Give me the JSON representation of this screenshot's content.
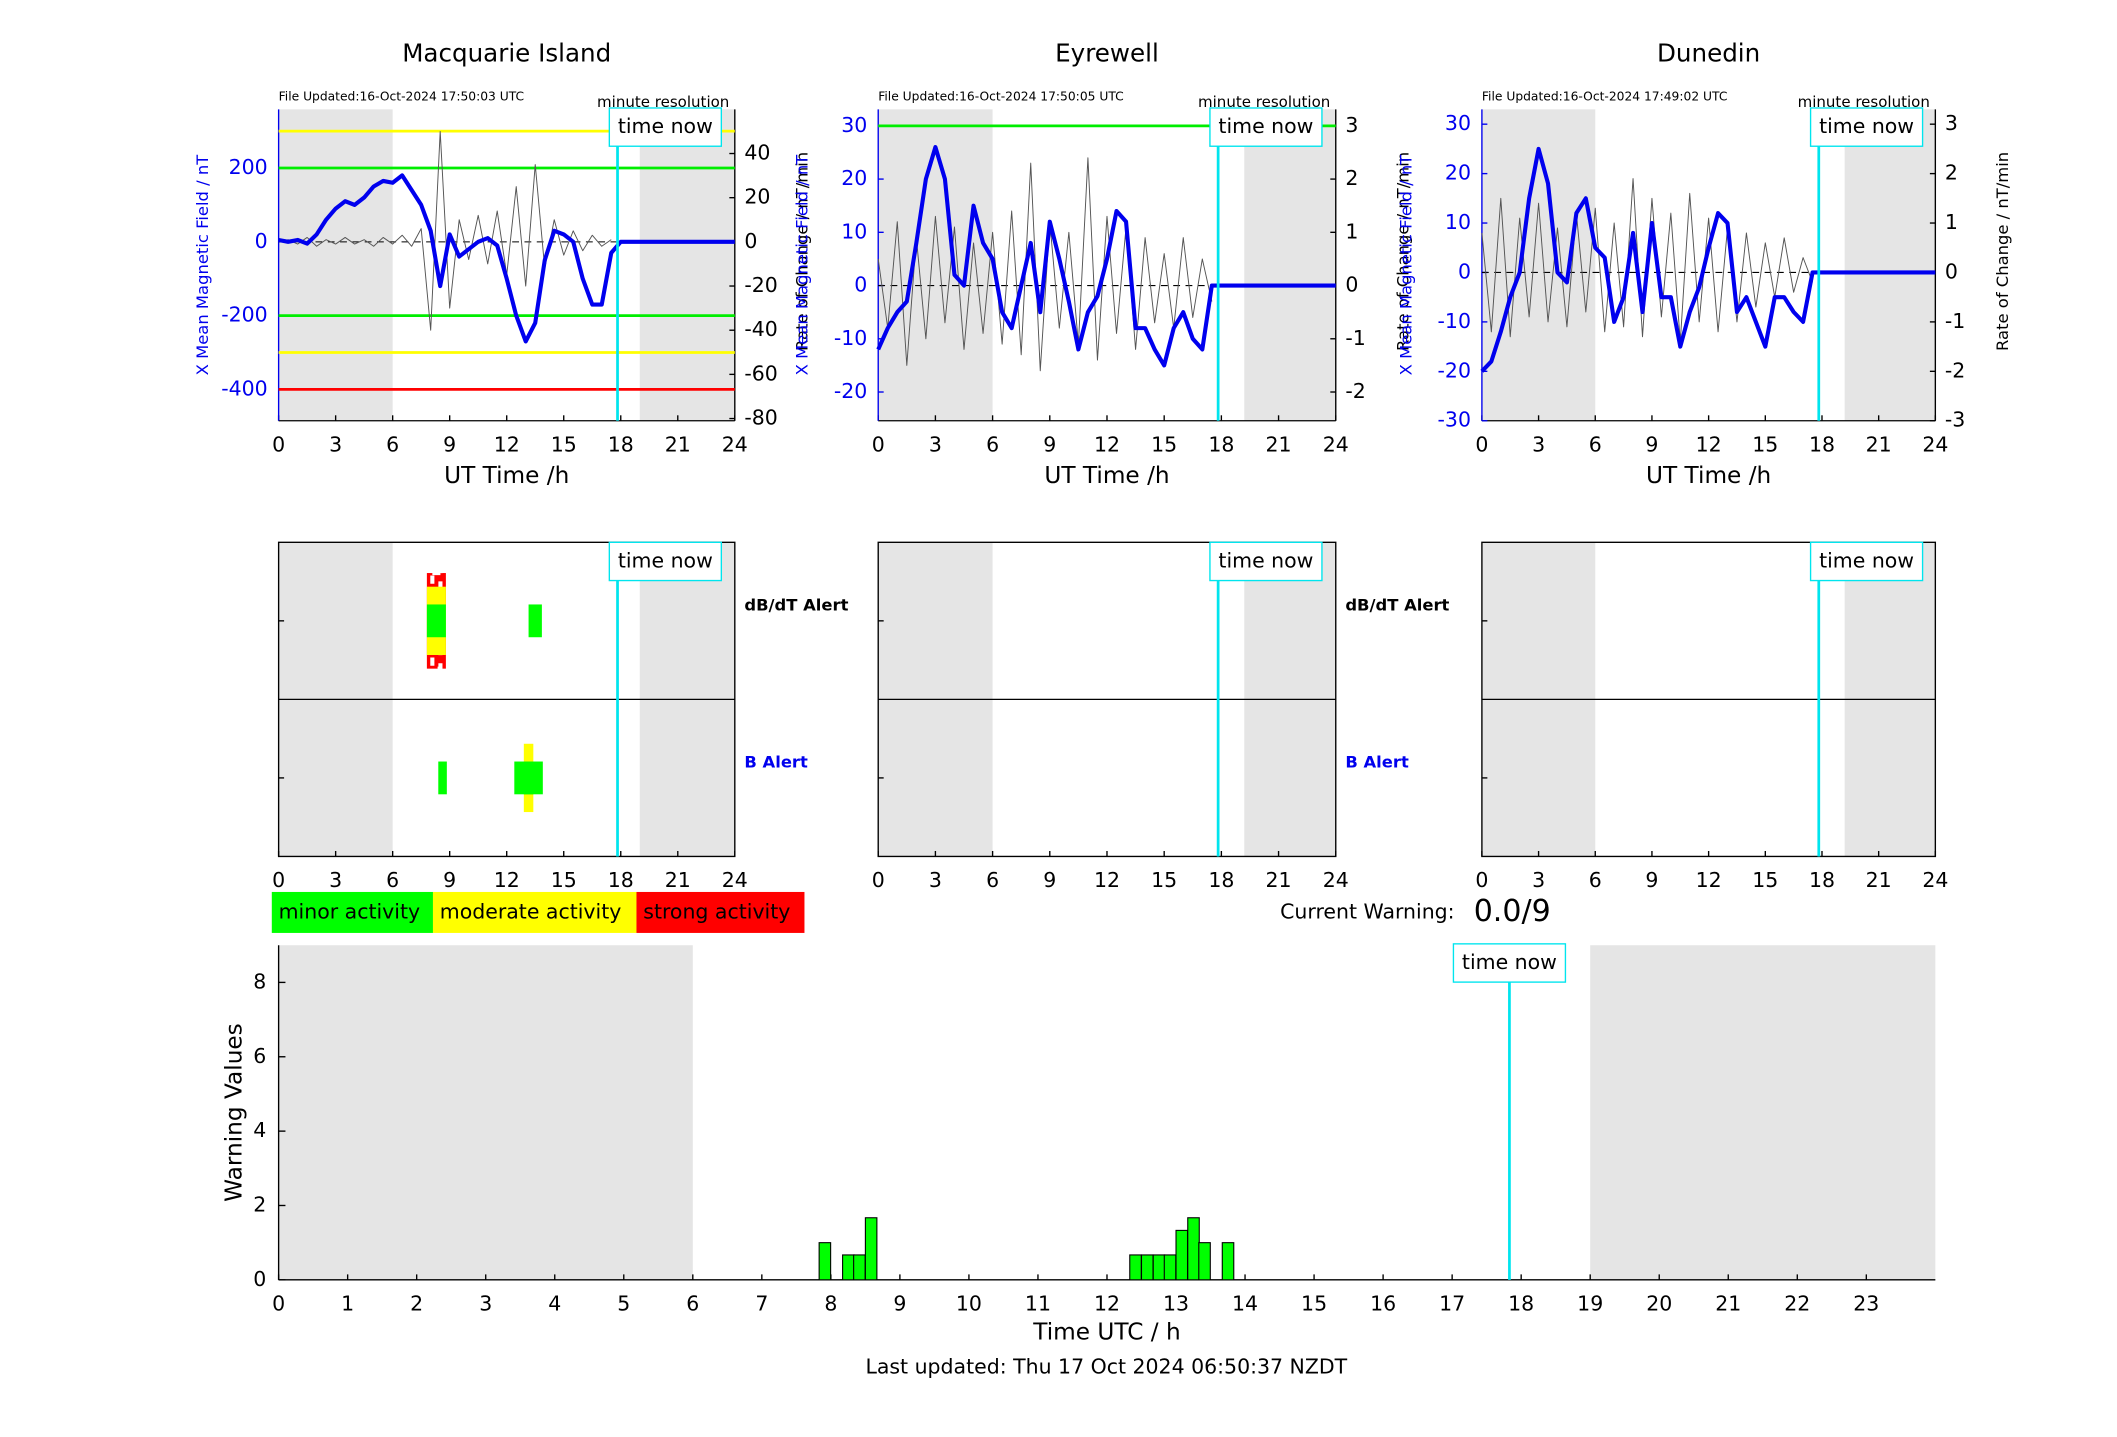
{
  "chart_data": [
    {
      "type": "line",
      "title": "Macquarie Island",
      "file_updated": "File Updated:16-Oct-2024 17:50:03 UTC",
      "resolution": "minute resolution",
      "xlabel": "UT Time /h",
      "ylabel": "X Mean Magnetic Field / nT",
      "y2label": "Rate of Change / nT/min",
      "xlim": [
        0,
        24
      ],
      "xticks": [
        0,
        3,
        6,
        9,
        12,
        15,
        18,
        21,
        24
      ],
      "ylim": [
        -485,
        359
      ],
      "yticks": [
        -400,
        -200,
        0,
        200
      ],
      "y2lim": [
        -81,
        60
      ],
      "y2ticks": [
        -80,
        -60,
        -40,
        -20,
        0,
        20,
        40
      ],
      "shade": [
        [
          0,
          6
        ],
        [
          19,
          24
        ]
      ],
      "time_now": 17.83,
      "time_now_label": "time now",
      "thresholds": [
        {
          "value": 300,
          "color": "#ffff00"
        },
        {
          "value": 200,
          "color": "#00ee00"
        },
        {
          "value": -200,
          "color": "#00ee00"
        },
        {
          "value": -300,
          "color": "#ffff00"
        },
        {
          "value": -400,
          "color": "#ff0000"
        }
      ],
      "x": [
        0,
        0.5,
        1,
        1.5,
        2,
        2.5,
        3,
        3.5,
        4,
        4.5,
        5,
        5.5,
        6,
        6.5,
        7,
        7.5,
        8,
        8.5,
        9,
        9.5,
        10,
        10.5,
        11,
        11.5,
        12,
        12.5,
        13,
        13.5,
        14,
        14.5,
        15,
        15.5,
        16,
        16.5,
        17,
        17.5,
        18,
        18.5,
        19,
        19.5,
        20,
        20.5,
        21,
        21.5,
        22,
        22.5,
        23,
        23.5,
        24
      ],
      "series": [
        {
          "color": "#555555",
          "axis": "y2",
          "values": [
            0,
            1,
            -1,
            2,
            -2,
            1,
            -1,
            2,
            -1,
            1,
            -2,
            2,
            -1,
            3,
            -2,
            6,
            -40,
            50,
            -30,
            10,
            -8,
            12,
            -10,
            14,
            -15,
            25,
            -20,
            35,
            -12,
            10,
            -6,
            5,
            -4,
            3,
            -2,
            1,
            null,
            null,
            null,
            null,
            null,
            null,
            null,
            null,
            null,
            null,
            null,
            null,
            null
          ]
        },
        {
          "color": "#0000ee",
          "values": [
            5,
            0,
            5,
            -5,
            20,
            60,
            90,
            110,
            100,
            120,
            150,
            165,
            160,
            180,
            140,
            100,
            30,
            -120,
            20,
            -40,
            -20,
            0,
            10,
            -10,
            -100,
            -200,
            -270,
            -220,
            -50,
            30,
            20,
            0,
            -100,
            -170,
            -170,
            -30,
            0,
            0,
            0,
            0,
            0,
            0,
            0,
            0,
            0,
            0,
            0,
            0,
            0
          ]
        }
      ]
    },
    {
      "type": "line",
      "title": "Eyrewell",
      "file_updated": "File Updated:16-Oct-2024 17:50:05 UTC",
      "resolution": "minute resolution",
      "xlabel": "UT Time /h",
      "ylabel": "X Mean Magnetic Field / nT",
      "y2label": "Rate of Change / nT/min",
      "xlim": [
        0,
        24
      ],
      "xticks": [
        0,
        3,
        6,
        9,
        12,
        15,
        18,
        21,
        24
      ],
      "ylim": [
        -25.4,
        33.1
      ],
      "yticks": [
        -20,
        -10,
        0,
        10,
        20,
        30
      ],
      "y2lim": [
        -2.54,
        3.31
      ],
      "y2ticks": [
        -2,
        -1,
        0,
        1,
        2,
        3
      ],
      "shade": [
        [
          0,
          6
        ],
        [
          19.2,
          24
        ]
      ],
      "time_now": 17.83,
      "time_now_label": "time now",
      "thresholds": [
        {
          "value": 30,
          "color": "#00ee00"
        }
      ],
      "x": [
        0,
        0.5,
        1,
        1.5,
        2,
        2.5,
        3,
        3.5,
        4,
        4.5,
        5,
        5.5,
        6,
        6.5,
        7,
        7.5,
        8,
        8.5,
        9,
        9.5,
        10,
        10.5,
        11,
        11.5,
        12,
        12.5,
        13,
        13.5,
        14,
        14.5,
        15,
        15.5,
        16,
        16.5,
        17,
        17.5,
        18,
        18.5,
        19,
        19.5,
        20,
        20.5,
        21,
        21.5,
        22,
        22.5,
        23,
        23.5,
        24
      ],
      "series": [
        {
          "color": "#555555",
          "axis": "y2",
          "values": [
            0.5,
            -0.8,
            1.2,
            -1.5,
            0.9,
            -1.0,
            1.3,
            -0.7,
            1.1,
            -1.2,
            0.8,
            -0.9,
            1.0,
            -1.1,
            1.4,
            -1.3,
            2.3,
            -1.6,
            1.2,
            -0.8,
            1.0,
            -1.1,
            2.4,
            -1.4,
            1.3,
            -0.9,
            1.1,
            -1.2,
            0.9,
            -0.7,
            0.6,
            -0.8,
            0.9,
            -0.6,
            0.5,
            -0.3,
            null,
            null,
            null,
            null,
            null,
            null,
            null,
            null,
            null,
            null,
            null,
            null,
            null
          ]
        },
        {
          "color": "#0000ee",
          "values": [
            -12,
            -8,
            -5,
            -3,
            8,
            20,
            26,
            20,
            2,
            0,
            15,
            8,
            5,
            -5,
            -8,
            0,
            8,
            -5,
            12,
            5,
            -3,
            -12,
            -5,
            -2,
            5,
            14,
            12,
            -8,
            -8,
            -12,
            -15,
            -8,
            -5,
            -10,
            -12,
            0,
            0,
            0,
            0,
            0,
            0,
            0,
            0,
            0,
            0,
            0,
            0,
            0,
            0
          ]
        }
      ]
    },
    {
      "type": "line",
      "title": "Dunedin",
      "file_updated": "File Updated:16-Oct-2024 17:49:02 UTC",
      "resolution": "minute resolution",
      "xlabel": "UT Time /h",
      "ylabel": "X Mean Magnetic Field / nT",
      "y2label": "Rate of Change / nT/min",
      "xlim": [
        0,
        24
      ],
      "xticks": [
        0,
        3,
        6,
        9,
        12,
        15,
        18,
        21,
        24
      ],
      "ylim": [
        -30,
        33
      ],
      "yticks": [
        -30,
        -20,
        -10,
        0,
        10,
        20,
        30
      ],
      "y2lim": [
        -3,
        3.3
      ],
      "y2ticks": [
        -3,
        -2,
        -1,
        0,
        1,
        2,
        3
      ],
      "shade": [
        [
          0,
          6
        ],
        [
          19.2,
          24
        ]
      ],
      "time_now": 17.83,
      "time_now_label": "time now",
      "thresholds": [],
      "x": [
        0,
        0.5,
        1,
        1.5,
        2,
        2.5,
        3,
        3.5,
        4,
        4.5,
        5,
        5.5,
        6,
        6.5,
        7,
        7.5,
        8,
        8.5,
        9,
        9.5,
        10,
        10.5,
        11,
        11.5,
        12,
        12.5,
        13,
        13.5,
        14,
        14.5,
        15,
        15.5,
        16,
        16.5,
        17,
        17.5,
        18,
        18.5,
        19,
        19.5,
        20,
        20.5,
        21,
        21.5,
        22,
        22.5,
        23,
        23.5,
        24
      ],
      "series": [
        {
          "color": "#555555",
          "axis": "y2",
          "values": [
            0.8,
            -1.2,
            1.5,
            -1.3,
            1.1,
            -0.9,
            1.4,
            -1.0,
            0.9,
            -1.1,
            1.2,
            -0.8,
            1.3,
            -1.2,
            1.0,
            -1.1,
            1.9,
            -1.3,
            1.5,
            -0.9,
            1.2,
            -1.4,
            1.6,
            -1.0,
            1.1,
            -1.2,
            0.9,
            -1.0,
            0.8,
            -0.7,
            0.6,
            -0.5,
            0.7,
            -0.4,
            0.3,
            -0.2,
            null,
            null,
            null,
            null,
            null,
            null,
            null,
            null,
            null,
            null,
            null,
            null,
            null
          ]
        },
        {
          "color": "#0000ee",
          "values": [
            -20,
            -18,
            -12,
            -5,
            0,
            15,
            25,
            18,
            0,
            -2,
            12,
            15,
            5,
            3,
            -10,
            -5,
            8,
            -8,
            10,
            -5,
            -5,
            -15,
            -8,
            -3,
            5,
            12,
            10,
            -8,
            -5,
            -10,
            -15,
            -5,
            -5,
            -8,
            -10,
            0,
            0,
            0,
            0,
            0,
            0,
            0,
            0,
            0,
            0,
            0,
            0,
            0,
            0
          ]
        }
      ]
    },
    {
      "type": "alert",
      "xlim": [
        0,
        24
      ],
      "xticks": [
        0,
        3,
        6,
        9,
        12,
        15,
        18,
        21,
        24
      ],
      "shade": [
        [
          0,
          6
        ],
        [
          19,
          24
        ]
      ],
      "time_now": 17.83,
      "time_now_label": "time now",
      "categories": [
        "dB/dT Alert",
        "B Alert"
      ],
      "category_colors": [
        "#000000",
        "#0000ee"
      ],
      "alerts": [
        {
          "row": 0,
          "start": 7.8,
          "end": 8.8,
          "level": 3
        },
        {
          "row": 0,
          "start": 13.15,
          "end": 13.85,
          "level": 1
        },
        {
          "row": 1,
          "start": 8.4,
          "end": 8.85,
          "level": 1
        },
        {
          "row": 1,
          "start": 12.9,
          "end": 13.4,
          "level": 2
        },
        {
          "row": 1,
          "start": 12.4,
          "end": 13.9,
          "level": 1
        }
      ]
    },
    {
      "type": "alert",
      "xlim": [
        0,
        24
      ],
      "xticks": [
        0,
        3,
        6,
        9,
        12,
        15,
        18,
        21,
        24
      ],
      "shade": [
        [
          0,
          6
        ],
        [
          19.2,
          24
        ]
      ],
      "time_now": 17.83,
      "time_now_label": "time now",
      "categories": [
        "dB/dT Alert",
        "B Alert"
      ],
      "category_colors": [
        "#000000",
        "#0000ee"
      ],
      "alerts": []
    },
    {
      "type": "alert",
      "xlim": [
        0,
        24
      ],
      "xticks": [
        0,
        3,
        6,
        9,
        12,
        15,
        18,
        21,
        24
      ],
      "shade": [
        [
          0,
          6
        ],
        [
          19.2,
          24
        ]
      ],
      "time_now": 17.83,
      "time_now_label": "time now",
      "alerts": []
    },
    {
      "type": "bar",
      "xlabel": "Time UTC / h",
      "ylabel": "Warning Values",
      "xlim": [
        0,
        24
      ],
      "xticks": [
        0,
        1,
        2,
        3,
        4,
        5,
        6,
        7,
        8,
        9,
        10,
        11,
        12,
        13,
        14,
        15,
        16,
        17,
        18,
        19,
        20,
        21,
        22,
        23
      ],
      "ylim": [
        0,
        9
      ],
      "yticks": [
        0,
        2,
        4,
        6,
        8
      ],
      "shade": [
        [
          0,
          6
        ],
        [
          19,
          24
        ]
      ],
      "time_now": 17.83,
      "time_now_label": "time now",
      "color": "#00ff00",
      "x": [
        7.83,
        8.17,
        8.33,
        8.5,
        12.33,
        12.5,
        12.67,
        12.83,
        13.0,
        13.17,
        13.33,
        13.67
      ],
      "values": [
        1,
        0.67,
        0.67,
        1.67,
        0.67,
        0.67,
        0.67,
        0.67,
        1.33,
        1.67,
        1.0,
        1.0
      ]
    }
  ],
  "legend": [
    {
      "label": "minor activity",
      "color": "#00ff00"
    },
    {
      "label": "moderate activity",
      "color": "#ffff00"
    },
    {
      "label": "strong activity",
      "color": "#ff0000"
    }
  ],
  "current_warning": {
    "label": "Current Warning:",
    "value": "0.0/9"
  },
  "footer": "Last updated: Thu 17 Oct 2024 06:50:37 NZDT"
}
